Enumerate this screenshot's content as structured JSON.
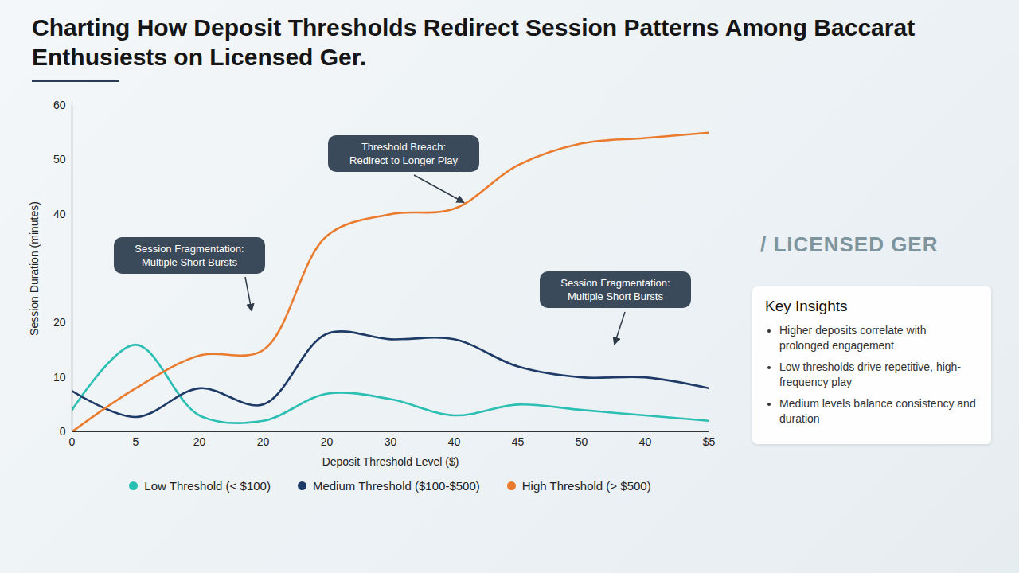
{
  "chart_data": {
    "type": "line",
    "title": "Charting How Deposit Thresholds Redirect Session Patterns Among Baccarat Enthusiests on Licensed Ger.",
    "x_label": "Deposit Threshold Level ($)",
    "y_label": "Session Duration (minutes)",
    "categories": [
      "0",
      "5",
      "20",
      "20",
      "20",
      "30",
      "40",
      "45",
      "50",
      "40",
      "$5"
    ],
    "series": [
      {
        "name": "Low Threshold (< $100)",
        "color": "#2bbfb3",
        "values": [
          4,
          16,
          3,
          2,
          7,
          6,
          3,
          5,
          4,
          3,
          2
        ]
      },
      {
        "name": "Medium Threshold ($100-$500)",
        "color": "#1e3a66",
        "values": [
          7.5,
          2.7,
          8,
          5,
          18,
          17,
          17,
          12,
          10,
          10,
          8
        ]
      },
      {
        "name": "High Threshold (> $500)",
        "color": "#ea7a2c",
        "values": [
          0,
          8,
          14,
          15,
          36,
          40,
          41,
          49,
          53,
          54,
          55
        ]
      }
    ],
    "ylim": [
      0,
      60
    ],
    "yticks": [
      0,
      10,
      20,
      40,
      50,
      60
    ],
    "grid": false,
    "legend": "bottom",
    "annotations": [
      {
        "text": "Threshold Breach: Redirect to Longer Play"
      },
      {
        "text": "Session Fragmentation: Multiple Short Bursts"
      },
      {
        "text": "Session Fragmentation: Multiple Short Bursts"
      }
    ],
    "watermark": "/ LICENSED GER",
    "key_insights": {
      "title": "Key Insights",
      "items": [
        "Higher deposits correlate with prolonged engagement",
        "Low thresholds drive repetitive, high-frequency play",
        "Medium levels balance consistency and duration"
      ]
    }
  }
}
